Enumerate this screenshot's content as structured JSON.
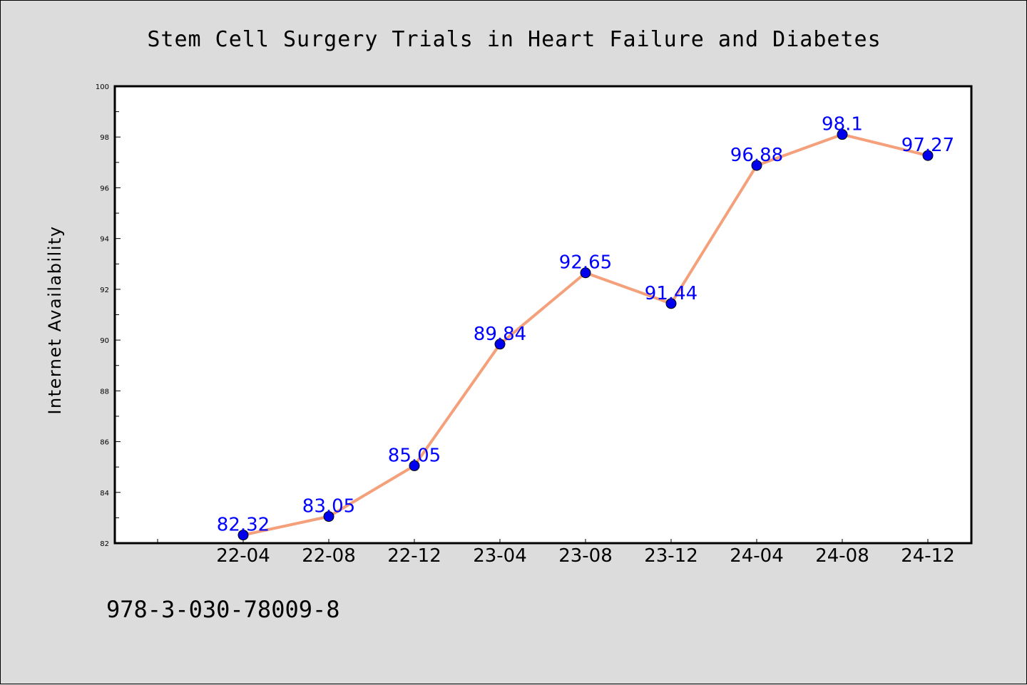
{
  "chart_data": {
    "type": "line",
    "title": "Stem Cell Surgery Trials in Heart Failure and Diabetes",
    "xlabel": "",
    "ylabel": "Internet Availability",
    "categories": [
      "22-04",
      "22-08",
      "22-12",
      "23-04",
      "23-08",
      "23-12",
      "24-04",
      "24-08",
      "24-12"
    ],
    "series": [
      {
        "values": [
          82.32,
          83.05,
          85.05,
          89.84,
          92.65,
          91.44,
          96.88,
          98.1,
          97.27
        ],
        "labels": [
          "82.32",
          "83.05",
          "85.05",
          "89.84",
          "92.65",
          "91.44",
          "96.88",
          "98.1",
          "97.27"
        ]
      }
    ],
    "ylim": [
      82,
      100
    ],
    "yticks": [
      82,
      84,
      86,
      88,
      90,
      92,
      94,
      96,
      98,
      100
    ],
    "grid": false,
    "legend": "none",
    "colors": {
      "line": "#f4a07a",
      "marker": "#0000ee",
      "data_label": "#0000ff",
      "plot_background": "#ffffff",
      "page_background": "#dcdcdc"
    }
  },
  "caption": "978-3-030-78009-8"
}
